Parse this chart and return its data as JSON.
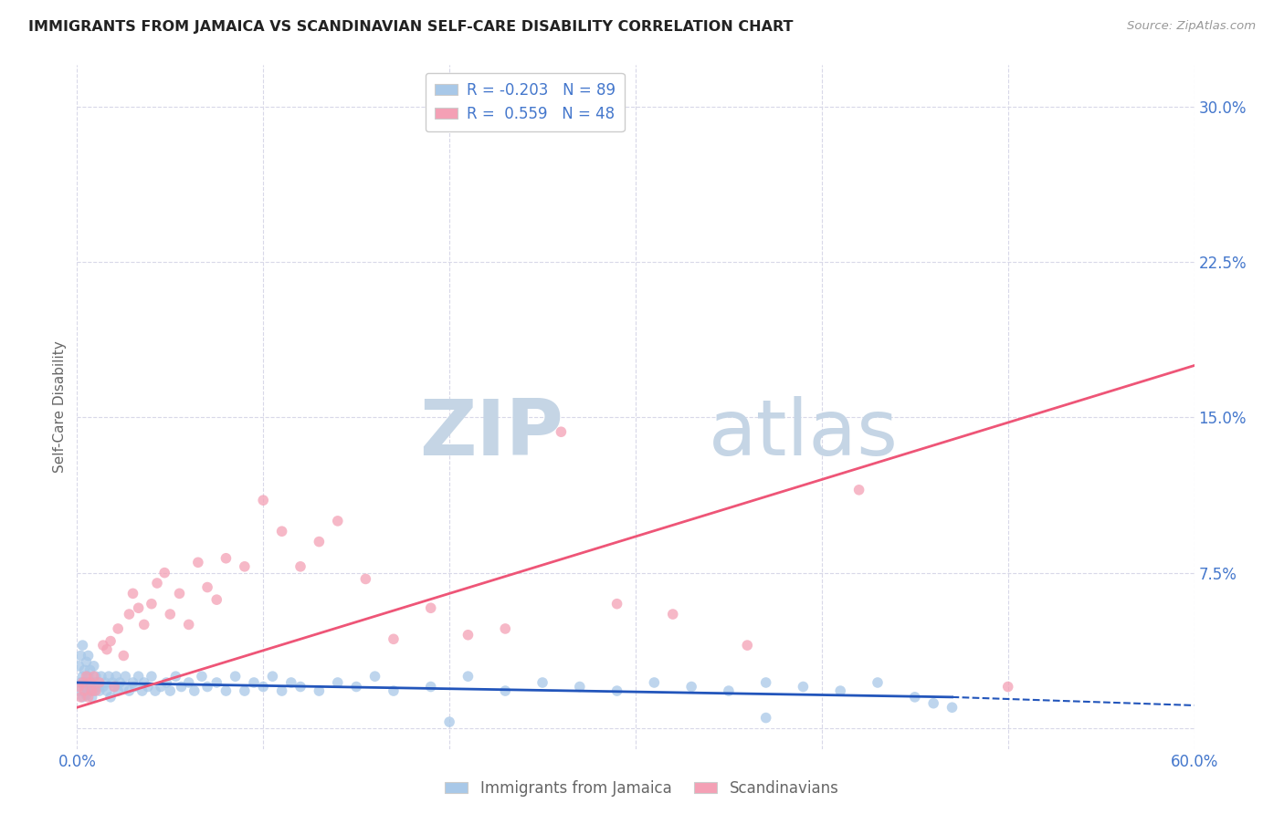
{
  "title": "IMMIGRANTS FROM JAMAICA VS SCANDINAVIAN SELF-CARE DISABILITY CORRELATION CHART",
  "source": "Source: ZipAtlas.com",
  "ylabel": "Self-Care Disability",
  "xlim": [
    0.0,
    0.6
  ],
  "ylim": [
    -0.01,
    0.32
  ],
  "yticks": [
    0.0,
    0.075,
    0.15,
    0.225,
    0.3
  ],
  "ytick_labels": [
    "",
    "7.5%",
    "15.0%",
    "22.5%",
    "30.0%"
  ],
  "xticks": [
    0.0,
    0.1,
    0.2,
    0.3,
    0.4,
    0.5,
    0.6
  ],
  "xtick_labels": [
    "0.0%",
    "",
    "",
    "",
    "",
    "",
    "60.0%"
  ],
  "legend_labels": [
    "Immigrants from Jamaica",
    "Scandinavians"
  ],
  "R_jamaica": -0.203,
  "N_jamaica": 89,
  "R_scandinavian": 0.559,
  "N_scandinavian": 48,
  "jamaica_color": "#a8c8e8",
  "scandinavian_color": "#f4a0b5",
  "jamaica_line_color": "#2255bb",
  "scandinavian_line_color": "#ee5577",
  "background_color": "#ffffff",
  "grid_color": "#d8d8e8",
  "title_color": "#222222",
  "axis_label_color": "#666666",
  "tick_color": "#4477cc",
  "watermark_zip": "ZIP",
  "watermark_atlas": "atlas",
  "watermark_color_zip": "#c5d5e5",
  "watermark_color_atlas": "#c5d5e5",
  "jamaica_line_x_solid_end": 0.47,
  "jamaica_line_x_dash_start": 0.47,
  "jamaica_line_x_end": 0.6,
  "jamaica_line_y_start": 0.022,
  "jamaica_line_y_at_047": 0.015,
  "jamaica_line_y_end": 0.011,
  "scandinavian_line_y_start": 0.01,
  "scandinavian_line_y_end": 0.175,
  "jamaica_scatter_x": [
    0.001,
    0.001,
    0.002,
    0.002,
    0.003,
    0.003,
    0.003,
    0.004,
    0.004,
    0.005,
    0.005,
    0.005,
    0.006,
    0.006,
    0.006,
    0.007,
    0.007,
    0.008,
    0.008,
    0.009,
    0.009,
    0.01,
    0.01,
    0.011,
    0.012,
    0.013,
    0.014,
    0.015,
    0.016,
    0.017,
    0.018,
    0.019,
    0.02,
    0.021,
    0.022,
    0.023,
    0.025,
    0.026,
    0.028,
    0.03,
    0.031,
    0.033,
    0.035,
    0.036,
    0.038,
    0.04,
    0.042,
    0.045,
    0.048,
    0.05,
    0.053,
    0.056,
    0.06,
    0.063,
    0.067,
    0.07,
    0.075,
    0.08,
    0.085,
    0.09,
    0.095,
    0.1,
    0.105,
    0.11,
    0.115,
    0.12,
    0.13,
    0.14,
    0.15,
    0.16,
    0.17,
    0.19,
    0.21,
    0.23,
    0.25,
    0.27,
    0.29,
    0.31,
    0.33,
    0.35,
    0.37,
    0.39,
    0.41,
    0.43,
    0.45,
    0.46,
    0.47,
    0.37,
    0.2
  ],
  "jamaica_scatter_y": [
    0.018,
    0.03,
    0.022,
    0.035,
    0.015,
    0.025,
    0.04,
    0.02,
    0.028,
    0.016,
    0.022,
    0.032,
    0.018,
    0.025,
    0.035,
    0.02,
    0.028,
    0.015,
    0.022,
    0.018,
    0.03,
    0.022,
    0.025,
    0.02,
    0.018,
    0.025,
    0.02,
    0.022,
    0.018,
    0.025,
    0.015,
    0.022,
    0.02,
    0.025,
    0.018,
    0.022,
    0.02,
    0.025,
    0.018,
    0.022,
    0.02,
    0.025,
    0.018,
    0.022,
    0.02,
    0.025,
    0.018,
    0.02,
    0.022,
    0.018,
    0.025,
    0.02,
    0.022,
    0.018,
    0.025,
    0.02,
    0.022,
    0.018,
    0.025,
    0.018,
    0.022,
    0.02,
    0.025,
    0.018,
    0.022,
    0.02,
    0.018,
    0.022,
    0.02,
    0.025,
    0.018,
    0.02,
    0.025,
    0.018,
    0.022,
    0.02,
    0.018,
    0.022,
    0.02,
    0.018,
    0.022,
    0.02,
    0.018,
    0.022,
    0.015,
    0.012,
    0.01,
    0.005,
    0.003
  ],
  "scandinavian_scatter_x": [
    0.001,
    0.002,
    0.003,
    0.004,
    0.005,
    0.006,
    0.007,
    0.008,
    0.009,
    0.01,
    0.012,
    0.014,
    0.016,
    0.018,
    0.02,
    0.022,
    0.025,
    0.028,
    0.03,
    0.033,
    0.036,
    0.04,
    0.043,
    0.047,
    0.05,
    0.055,
    0.06,
    0.065,
    0.07,
    0.075,
    0.08,
    0.09,
    0.1,
    0.11,
    0.12,
    0.13,
    0.14,
    0.155,
    0.17,
    0.19,
    0.21,
    0.23,
    0.26,
    0.29,
    0.32,
    0.36,
    0.42,
    0.5
  ],
  "scandinavian_scatter_y": [
    0.02,
    0.015,
    0.022,
    0.018,
    0.025,
    0.015,
    0.022,
    0.018,
    0.025,
    0.018,
    0.022,
    0.04,
    0.038,
    0.042,
    0.02,
    0.048,
    0.035,
    0.055,
    0.065,
    0.058,
    0.05,
    0.06,
    0.07,
    0.075,
    0.055,
    0.065,
    0.05,
    0.08,
    0.068,
    0.062,
    0.082,
    0.078,
    0.11,
    0.095,
    0.078,
    0.09,
    0.1,
    0.072,
    0.043,
    0.058,
    0.045,
    0.048,
    0.143,
    0.06,
    0.055,
    0.04,
    0.115,
    0.02
  ]
}
